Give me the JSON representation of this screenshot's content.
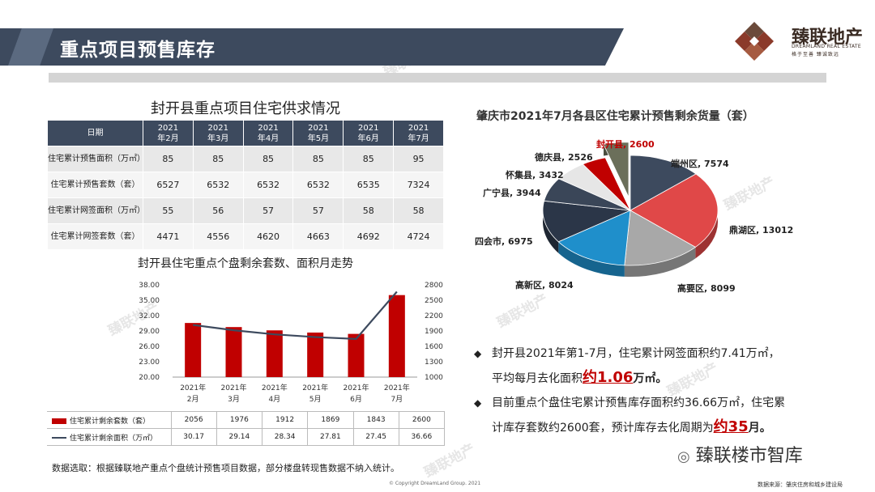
{
  "header": {
    "title": "重点项目预售库存",
    "logo_cn": "臻联地产",
    "logo_en": "DREAMLAND REAL ESTATE",
    "logo_slogan": "格于至善 臻诚致远"
  },
  "supply_table": {
    "title": "封开县重点项目住宅供求情况",
    "date_header": "日期",
    "months": [
      "2021年2月",
      "2021年3月",
      "2021年4月",
      "2021年5月",
      "2021年6月",
      "2021年7月"
    ],
    "rows": [
      {
        "label": "住宅累计预售面积（万㎡）",
        "values": [
          "85",
          "85",
          "85",
          "85",
          "85",
          "95"
        ]
      },
      {
        "label": "住宅累计预售套数（套）",
        "values": [
          "6527",
          "6532",
          "6532",
          "6532",
          "6535",
          "7324"
        ]
      },
      {
        "label": "住宅累计网签面积（万㎡）",
        "values": [
          "55",
          "56",
          "57",
          "57",
          "58",
          "58"
        ]
      },
      {
        "label": "住宅累计网签套数（套）",
        "values": [
          "4471",
          "4556",
          "4620",
          "4663",
          "4692",
          "4724"
        ]
      }
    ]
  },
  "chart_data": [
    {
      "type": "bar",
      "title": "封开县住宅重点个盘剩余套数、面积月走势",
      "categories": [
        "2021年2月",
        "2021年3月",
        "2021年4月",
        "2021年5月",
        "2021年6月",
        "2021年7月"
      ],
      "series": [
        {
          "name": "住宅累计剩余套数（套）",
          "type": "bar",
          "axis": "right",
          "values": [
            2056,
            1976,
            1912,
            1869,
            1843,
            2600
          ],
          "color": "#c00000"
        },
        {
          "name": "住宅累计剩余面积（万㎡）",
          "type": "line",
          "axis": "left",
          "values": [
            30.17,
            29.14,
            28.34,
            27.81,
            27.45,
            36.66
          ],
          "color": "#3d4a5e"
        }
      ],
      "left_axis": {
        "min": 20,
        "max": 38,
        "ticks": [
          "20.00",
          "23.00",
          "26.00",
          "29.00",
          "32.00",
          "35.00",
          "38.00"
        ]
      },
      "right_axis": {
        "min": 1000,
        "max": 2800,
        "ticks": [
          "1000",
          "1300",
          "1600",
          "1900",
          "2200",
          "2500",
          "2800"
        ]
      }
    },
    {
      "type": "pie",
      "title": "肇庆市2021年7月各县区住宅累计预售剩余货量（套）",
      "slices": [
        {
          "label": "端州区, 7574",
          "name": "端州区",
          "value": 7574,
          "color": "#3d4a5e"
        },
        {
          "label": "鼎湖区, 13012",
          "name": "鼎湖区",
          "value": 13012,
          "color": "#e04848"
        },
        {
          "label": "高要区, 8099",
          "name": "高要区",
          "value": 8099,
          "color": "#a8a8a8"
        },
        {
          "label": "高新区, 8024",
          "name": "高新区",
          "value": 8024,
          "color": "#1f8fcb"
        },
        {
          "label": "四会市, 6975",
          "name": "四会市",
          "value": 6975,
          "color": "#2b3648"
        },
        {
          "label": "广宁县, 3944",
          "name": "广宁县",
          "value": 3944,
          "color": "#3a4658"
        },
        {
          "label": "怀集县, 3432",
          "name": "怀集县",
          "value": 3432,
          "color": "#e6e6e6"
        },
        {
          "label": "德庆县, 2526",
          "name": "德庆县",
          "value": 2526,
          "color": "#c00000"
        },
        {
          "label": "封开县, 2600",
          "name": "封开县",
          "value": 2600,
          "color": "#6b6f5a",
          "highlight": true
        }
      ]
    }
  ],
  "bullets": {
    "b1_part1": "封开县2021年第1-7月，住宅累计网签面积约7.41万㎡，",
    "b1_part2": "平均每月去化面积",
    "b1_hl": "约1.06",
    "b1_unit": "万㎡。",
    "b2_part1": "目前重点个盘住宅累计预售库存面积约36.66万㎡，住宅累",
    "b2_part2": "计库存套数约2600套，预计库存去化周期为",
    "b2_hl": "约35",
    "b2_unit": "月。"
  },
  "footer": {
    "note": "数据选取：根据臻联地产重点个盘统计预售项目数据，部分楼盘转现售数据不纳入统计。",
    "copyright": "© Copyright DreamLand Group. 2021",
    "source": "数据来源：肇庆住房和城乡建设局",
    "wechat": "臻联楼市智库"
  },
  "watermark": "臻联地产"
}
